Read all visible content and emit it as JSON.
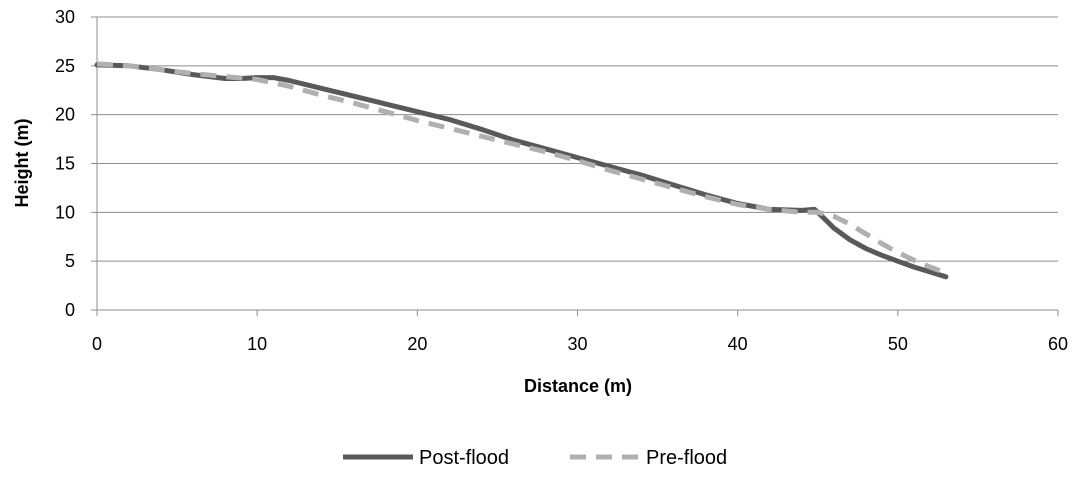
{
  "chart_data": {
    "type": "line",
    "xlabel": "Distance (m)",
    "ylabel": "Height (m)",
    "xlim": [
      0,
      60
    ],
    "ylim": [
      0,
      30
    ],
    "xticks": [
      0,
      10,
      20,
      30,
      40,
      50,
      60
    ],
    "yticks": [
      0,
      5,
      10,
      15,
      20,
      25,
      30
    ],
    "grid": "horizontal",
    "legend_position": "bottom",
    "series": [
      {
        "name": "Post-flood",
        "color": "#595959",
        "style": "solid",
        "x": [
          0,
          2,
          4,
          6,
          8,
          9,
          10,
          11,
          12,
          14,
          16,
          18,
          20,
          22,
          24,
          26,
          28,
          30,
          32,
          34,
          36,
          38,
          40,
          42,
          44,
          44.8,
          45,
          45.5,
          46,
          47,
          48,
          49,
          50,
          51,
          52,
          53
        ],
        "y": [
          25.1,
          25.0,
          24.6,
          24.1,
          23.7,
          23.7,
          23.8,
          23.8,
          23.5,
          22.7,
          21.9,
          21.1,
          20.3,
          19.5,
          18.5,
          17.4,
          16.5,
          15.6,
          14.7,
          13.8,
          12.8,
          11.8,
          10.9,
          10.3,
          10.2,
          10.3,
          10.0,
          9.2,
          8.4,
          7.2,
          6.3,
          5.6,
          5.0,
          4.4,
          3.9,
          3.4
        ]
      },
      {
        "name": "Pre-flood",
        "color": "#b0b0b0",
        "style": "dashed",
        "x": [
          0,
          2,
          4,
          6,
          8,
          10,
          12,
          14,
          16,
          18,
          20,
          22,
          24,
          26,
          28,
          30,
          32,
          34,
          36,
          38,
          40,
          42,
          44,
          45,
          46,
          47,
          48,
          49,
          50,
          51,
          52,
          53
        ],
        "y": [
          25.2,
          25.0,
          24.6,
          24.2,
          23.9,
          23.6,
          22.9,
          22.0,
          21.2,
          20.3,
          19.4,
          18.6,
          17.8,
          17.0,
          16.2,
          15.3,
          14.3,
          13.4,
          12.5,
          11.6,
          10.8,
          10.3,
          10.0,
          10.0,
          9.6,
          8.8,
          7.8,
          6.8,
          5.9,
          5.1,
          4.4,
          3.8
        ]
      }
    ]
  }
}
